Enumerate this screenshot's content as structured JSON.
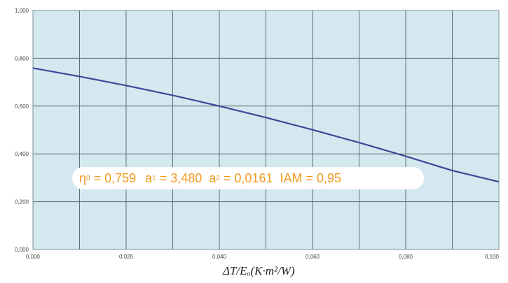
{
  "chart_data": {
    "type": "line",
    "x": [
      0.0,
      0.01,
      0.02,
      0.03,
      0.04,
      0.05,
      0.06,
      0.07,
      0.08,
      0.09,
      0.1
    ],
    "series": [
      {
        "values": [
          0.759,
          0.724,
          0.686,
          0.645,
          0.6,
          0.552,
          0.501,
          0.447,
          0.39,
          0.33,
          0.283
        ]
      }
    ],
    "xlim": [
      0,
      0.1
    ],
    "ylim": [
      0,
      1
    ],
    "xticks": [
      0.0,
      0.02,
      0.04,
      0.06,
      0.08,
      0.1
    ],
    "xtick_labels": [
      "0,000",
      "0,020",
      "0,040",
      "0,060",
      "0,080",
      "0,100"
    ],
    "yticks": [
      0,
      0.2,
      0.4,
      0.6,
      0.8,
      1.0
    ],
    "ytick_labels": [
      "0,000",
      "0,200",
      "0,400",
      "0,600",
      "0,800",
      "1,000"
    ],
    "grid": true,
    "xlabel": "ΔT/Eₐ(K·m²/W)",
    "line_color": "#3a4a9a",
    "plot_background": "#d4e8ef",
    "annotation": {
      "eta_symbol": "η",
      "eta_sub": "0",
      "eta_value": "= 0,759",
      "a1_symbol": "a",
      "a1_sub": "1",
      "a1_value": "= 3,480",
      "a2_symbol": "a",
      "a2_sub": "2",
      "a2_value": "= 0,0161",
      "iam_text": "IAM = 0,95",
      "color": "#f39a1e"
    }
  }
}
